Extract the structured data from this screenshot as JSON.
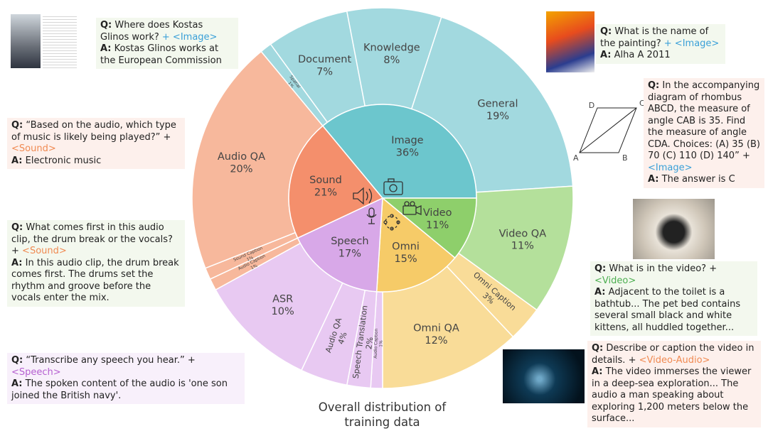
{
  "chart_data": {
    "type": "sunburst",
    "title": "Overall distribution of training data",
    "inner": {
      "categories": [
        "Image",
        "Video",
        "Omni",
        "Speech",
        "Sound"
      ],
      "values": [
        36,
        11,
        15,
        17,
        21
      ],
      "value_labels": [
        "36%",
        "11%",
        "15%",
        "17%",
        "21%"
      ],
      "colors": [
        "#6cc6cd",
        "#8ecf6b",
        "#f6cb68",
        "#d8a8e8",
        "#f48f6c"
      ]
    },
    "outer": {
      "categories": [
        "Spatial",
        "Document",
        "Knowledge",
        "General",
        "Video QA",
        "Omni Caption",
        "Omni QA",
        "Audio Caption",
        "Speech Translation",
        "Audio QA",
        "ASR",
        "Audio Caption",
        "Sound Caption",
        "Audio QA"
      ],
      "values": [
        1,
        7,
        8,
        19,
        11,
        3,
        12,
        1,
        2,
        4,
        10,
        1,
        1,
        20
      ],
      "value_labels": [
        "1%",
        "7%",
        "8%",
        "19%",
        "11%",
        "3%",
        "12%",
        "1%",
        "2%",
        "4%",
        "10%",
        "1%",
        "1%",
        "20%"
      ],
      "colors": [
        "#a2d9df",
        "#a2d9df",
        "#a2d9df",
        "#a2d9df",
        "#b4e09b",
        "#f9dc98",
        "#f9dc98",
        "#e8c9f2",
        "#e8c9f2",
        "#e8c9f2",
        "#e8c9f2",
        "#f7b89c",
        "#f7b89c",
        "#f7b89c"
      ]
    },
    "annotations": {
      "q": "Q:",
      "a": "A:",
      "items": [
        {
          "question": "Where does Kostas Glinos work?",
          "tag": "+ <Image>",
          "tag_color": "#3aa0d8",
          "answer": "Kostas Glinos works at the European Commission"
        },
        {
          "question": "“Based on the audio, which type of music is likely being played?” +",
          "tag": "<Sound>",
          "tag_color": "#f08a52",
          "answer": "Electronic music"
        },
        {
          "question": "What comes first in this audio clip, the drum break or the vocals? +",
          "tag": "<Sound>",
          "tag_color": "#f08a52",
          "answer": "In this audio clip, the drum break comes first. The drums set the rhythm and groove before the vocals enter the mix."
        },
        {
          "question": "“Transcribe any speech you hear.” +",
          "tag": "<Speech>",
          "tag_color": "#b55fd0",
          "answer": "The spoken content of the audio is 'one son joined the British navy'."
        },
        {
          "question": "What is the name of the painting?",
          "tag": "+ <Image>",
          "tag_color": "#3aa0d8",
          "answer": "Alha A 2011"
        },
        {
          "question": "In the accompanying diagram of rhombus ABCD, the measure of angle CAB is 35. Find the measure of angle CDA. Choices: (A) 35 (B) 70 (C) 110 (D) 140” +",
          "tag": "<Image>",
          "tag_color": "#3aa0d8",
          "answer": "The answer is C"
        },
        {
          "question": "What is in the video? +",
          "tag": "<Video>",
          "tag_color": "#4caf50",
          "answer": "Adjacent to the toilet is a bathtub... The pet bed contains several small black and white kittens, all huddled together..."
        },
        {
          "question": "Describe or caption the video in details. +",
          "tag": "<Video-Audio>",
          "tag_color": "#f08a52",
          "answer": "The video immerses the viewer in a deep-sea exploration... The audio a man speaking about exploring 1,200 meters below the surface..."
        }
      ]
    },
    "diagram_labels": [
      "D",
      "C",
      "A",
      "B"
    ]
  }
}
